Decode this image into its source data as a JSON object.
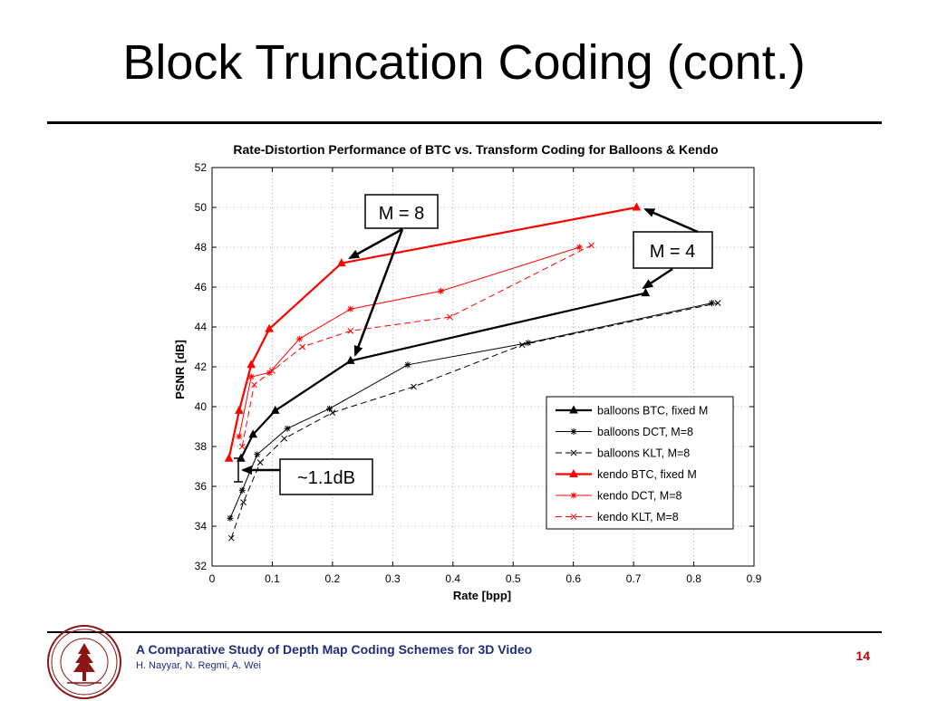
{
  "slide": {
    "title": "Block Truncation Coding (cont.)",
    "footer_title": "A Comparative Study of Depth Map Coding Schemes for 3D Video",
    "footer_authors": "H. Nayyar, N. Regmi, A. Wei",
    "page_number": "14",
    "accent_color": "#1f2d7a",
    "page_number_color": "#c00000",
    "logo_icon": "university-seal-icon"
  },
  "chart_data": {
    "type": "line",
    "title": "Rate-Distortion Performance of BTC vs. Transform Coding for Balloons & Kendo",
    "xlabel": "Rate [bpp]",
    "ylabel": "PSNR [dB]",
    "xlim": [
      0,
      0.9
    ],
    "ylim": [
      32,
      52
    ],
    "xticks": [
      0,
      0.1,
      0.2,
      0.3,
      0.4,
      0.5,
      0.6,
      0.7,
      0.8,
      0.9
    ],
    "yticks": [
      32,
      34,
      36,
      38,
      40,
      42,
      44,
      46,
      48,
      50,
      52
    ],
    "grid": true,
    "legend_position": "bottom-right",
    "series": [
      {
        "name": "balloons BTC, fixed M",
        "color": "#000000",
        "marker": "triangle",
        "dash": "solid",
        "width": 2.2,
        "points": [
          [
            0.048,
            37.4
          ],
          [
            0.068,
            38.6
          ],
          [
            0.105,
            39.8
          ],
          [
            0.23,
            42.3
          ],
          [
            0.72,
            45.7
          ]
        ]
      },
      {
        "name": "balloons DCT, M=8",
        "color": "#000000",
        "marker": "star",
        "dash": "solid",
        "width": 1,
        "points": [
          [
            0.03,
            34.4
          ],
          [
            0.05,
            35.8
          ],
          [
            0.075,
            37.6
          ],
          [
            0.125,
            38.9
          ],
          [
            0.195,
            39.9
          ],
          [
            0.325,
            42.1
          ],
          [
            0.525,
            43.2
          ],
          [
            0.83,
            45.2
          ]
        ]
      },
      {
        "name": "balloons KLT, M=8",
        "color": "#000000",
        "marker": "x",
        "dash": "dashed",
        "width": 1,
        "points": [
          [
            0.032,
            33.4
          ],
          [
            0.052,
            35.2
          ],
          [
            0.08,
            37.2
          ],
          [
            0.12,
            38.4
          ],
          [
            0.2,
            39.7
          ],
          [
            0.335,
            41.0
          ],
          [
            0.515,
            43.1
          ],
          [
            0.84,
            45.2
          ]
        ]
      },
      {
        "name": "kendo BTC, fixed M",
        "color": "#ff0000",
        "marker": "triangle",
        "dash": "solid",
        "width": 2.2,
        "points": [
          [
            0.028,
            37.4
          ],
          [
            0.045,
            39.8
          ],
          [
            0.065,
            42.1
          ],
          [
            0.095,
            43.9
          ],
          [
            0.215,
            47.2
          ],
          [
            0.705,
            50.0
          ]
        ]
      },
      {
        "name": "kendo DCT, M=8",
        "color": "#ff0000",
        "marker": "star",
        "dash": "solid",
        "width": 1,
        "points": [
          [
            0.045,
            38.5
          ],
          [
            0.065,
            41.5
          ],
          [
            0.095,
            41.7
          ],
          [
            0.145,
            43.4
          ],
          [
            0.23,
            44.9
          ],
          [
            0.38,
            45.8
          ],
          [
            0.61,
            48.0
          ]
        ]
      },
      {
        "name": "kendo KLT, M=8",
        "color": "#ff0000",
        "marker": "x",
        "dash": "dashed",
        "width": 1,
        "points": [
          [
            0.05,
            38.0
          ],
          [
            0.07,
            41.1
          ],
          [
            0.1,
            41.8
          ],
          [
            0.15,
            43.0
          ],
          [
            0.23,
            43.8
          ],
          [
            0.395,
            44.5
          ],
          [
            0.63,
            48.1
          ]
        ]
      }
    ],
    "annotations": [
      {
        "label": "M = 8"
      },
      {
        "label": "M = 4"
      },
      {
        "label": "~1.1dB"
      }
    ]
  }
}
